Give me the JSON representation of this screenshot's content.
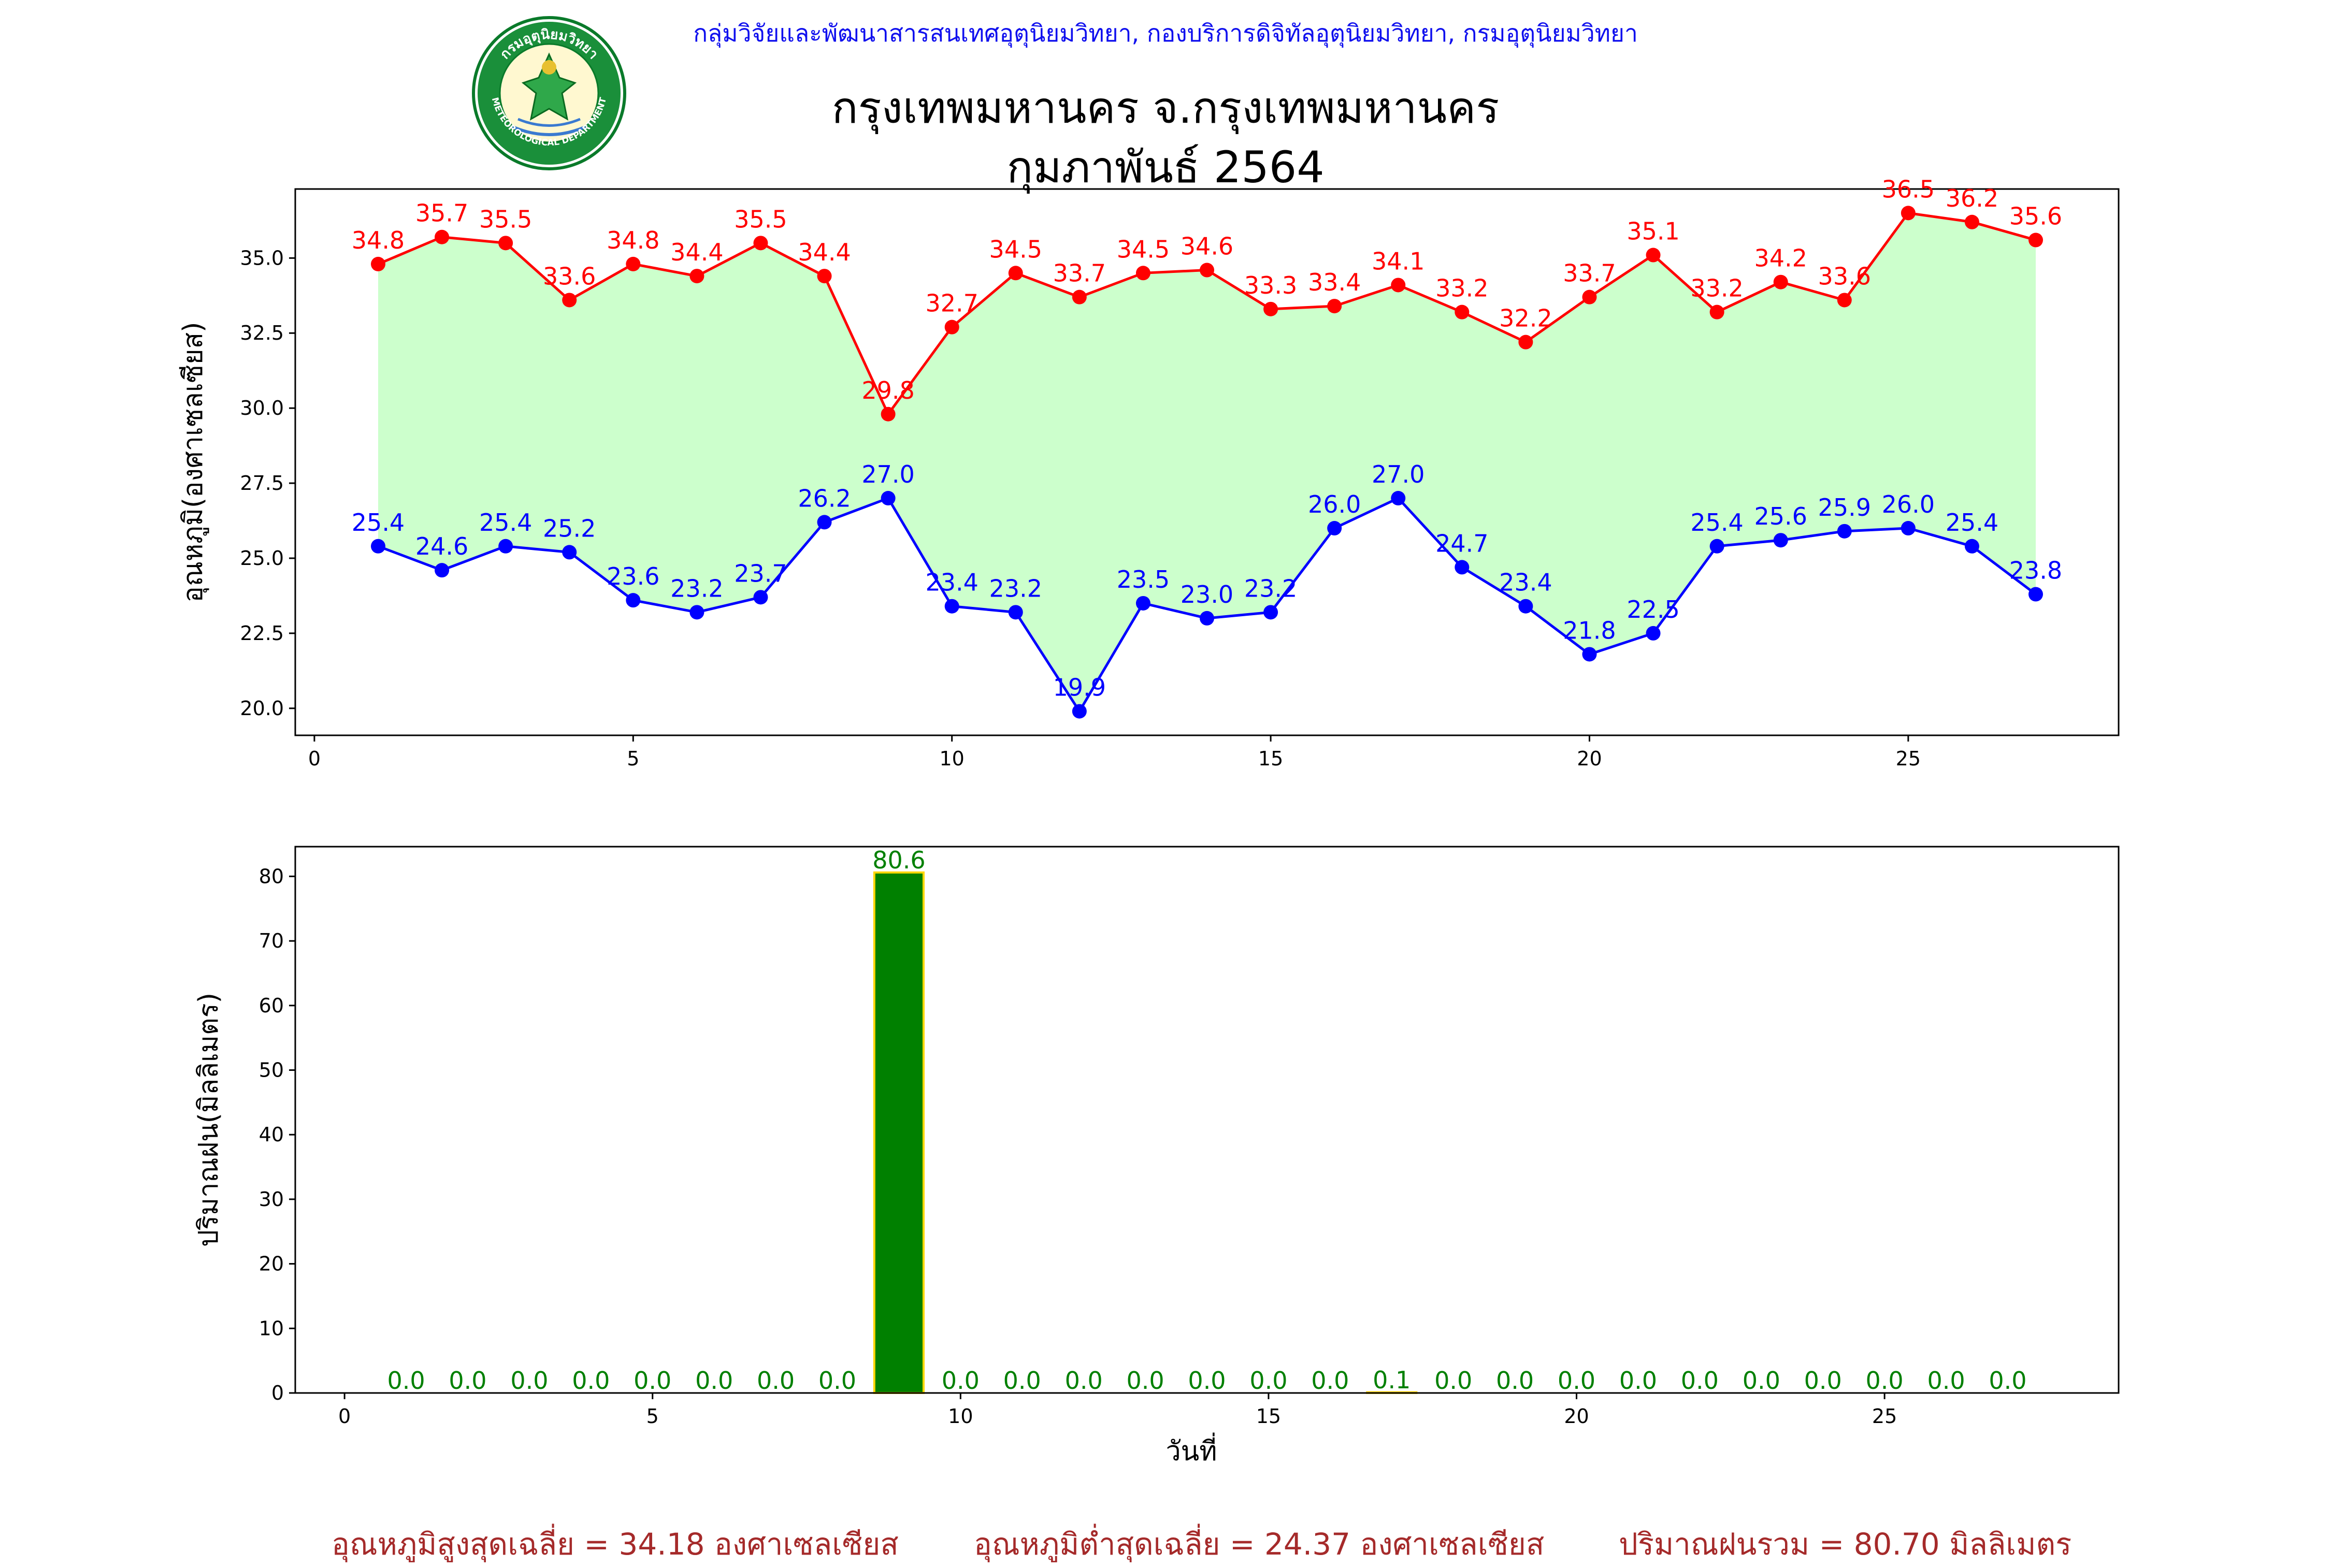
{
  "header": {
    "org_line": "กลุ่มวิจัยและพัฒนาสารสนเทศอุตุนิยมวิทยา, กองบริการดิจิทัลอุตุนิยมวิทยา, กรมอุตุนิยมวิทยา",
    "title_line1": "กรุงเทพมหานคร จ.กรุงเทพมหานคร",
    "title_line2": "กุมภาพันธ์ 2564",
    "logo": {
      "icon": "meteorological-department-seal-icon",
      "text_top": "กรมอุตุนิยมวิทยา",
      "text_bottom": "METEOROLOGICAL DEPARTMENT"
    }
  },
  "chart_data": [
    {
      "type": "line",
      "ylabel": "อุณหภูมิ(องศาเซลเซียส)",
      "xlabel": "",
      "x": [
        1,
        2,
        3,
        4,
        5,
        6,
        7,
        8,
        9,
        10,
        11,
        12,
        13,
        14,
        15,
        16,
        17,
        18,
        19,
        20,
        21,
        22,
        23,
        24,
        25,
        26,
        27
      ],
      "series": [
        {
          "values": [
            34.8,
            35.7,
            35.5,
            33.6,
            34.8,
            34.4,
            35.5,
            34.4,
            29.8,
            32.7,
            34.5,
            33.7,
            34.5,
            34.6,
            33.3,
            33.4,
            34.1,
            33.2,
            32.2,
            33.7,
            35.1,
            33.2,
            34.2,
            33.6,
            36.5,
            36.2,
            35.6
          ],
          "color": "#ff0000"
        },
        {
          "values": [
            25.4,
            24.6,
            25.4,
            25.2,
            23.6,
            23.2,
            23.7,
            26.2,
            27.0,
            23.4,
            23.2,
            19.9,
            23.5,
            23.0,
            23.2,
            26.0,
            27.0,
            24.7,
            23.4,
            21.8,
            22.5,
            25.4,
            25.6,
            25.9,
            26.0,
            25.4,
            23.8
          ],
          "color": "#0000ff"
        }
      ],
      "fill_between_color": "#ccffcc",
      "xlim": [
        -0.3,
        28.3
      ],
      "ylim": [
        19.1,
        37.3
      ],
      "xticks": [
        0,
        5,
        10,
        15,
        20,
        25
      ],
      "yticks": [
        20.0,
        22.5,
        25.0,
        27.5,
        30.0,
        32.5,
        35.0
      ],
      "grid": false
    },
    {
      "type": "bar",
      "ylabel": "ปริมาณฝน(มิลลิเมตร)",
      "xlabel": "วันที่",
      "x": [
        1,
        2,
        3,
        4,
        5,
        6,
        7,
        8,
        9,
        10,
        11,
        12,
        13,
        14,
        15,
        16,
        17,
        18,
        19,
        20,
        21,
        22,
        23,
        24,
        25,
        26,
        27
      ],
      "values": [
        0.0,
        0.0,
        0.0,
        0.0,
        0.0,
        0.0,
        0.0,
        0.0,
        80.6,
        0.0,
        0.0,
        0.0,
        0.0,
        0.0,
        0.0,
        0.0,
        0.1,
        0.0,
        0.0,
        0.0,
        0.0,
        0.0,
        0.0,
        0.0,
        0.0,
        0.0,
        0.0
      ],
      "bar_color": "#008000",
      "edge_color": "#ffd700",
      "label_color": "#008000",
      "xlim": [
        -0.8,
        28.8
      ],
      "ylim": [
        0,
        84.6
      ],
      "xticks": [
        0,
        5,
        10,
        15,
        20,
        25
      ],
      "yticks": [
        0,
        10,
        20,
        30,
        40,
        50,
        60,
        70,
        80
      ],
      "grid": false
    }
  ],
  "footer": {
    "avg_max": "อุณหภูมิสูงสุดเฉลี่ย = 34.18 องศาเซลเซียส",
    "avg_min": "อุณหภูมิต่ำสุดเฉลี่ย = 24.37 องศาเซลเซียส",
    "total_rain": "ปริมาณฝนรวม = 80.70 มิลลิเมตร"
  }
}
